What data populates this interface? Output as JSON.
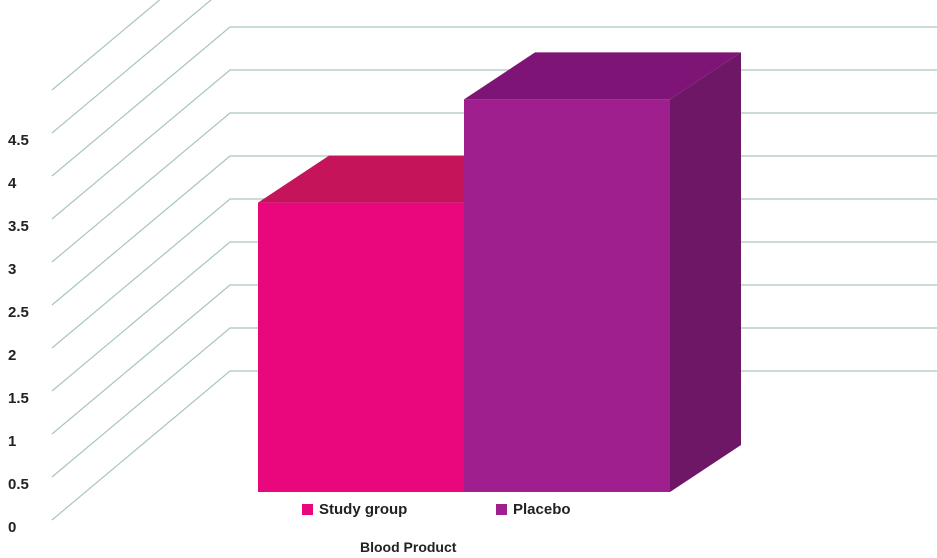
{
  "chart_data": {
    "type": "bar",
    "three_d": true,
    "categories": [
      "Blood Product"
    ],
    "series": [
      {
        "name": "Study group",
        "values": [
          3.4
        ],
        "color": "#e8077c",
        "top_color": "#c5145a",
        "side_color": "#b30b61"
      },
      {
        "name": "Placebo",
        "values": [
          4.6
        ],
        "color": "#a01f8f",
        "top_color": "#7e1476",
        "side_color": "#6e1766"
      }
    ],
    "xlabel": "Blood Product",
    "ylabel": "",
    "ylim": [
      0,
      5
    ],
    "yticks": [
      "0",
      "0.5",
      "1",
      "1.5",
      "2",
      "2.5",
      "3",
      "3.5",
      "4",
      "4.5"
    ],
    "grid": true,
    "legend_position": "bottom"
  }
}
